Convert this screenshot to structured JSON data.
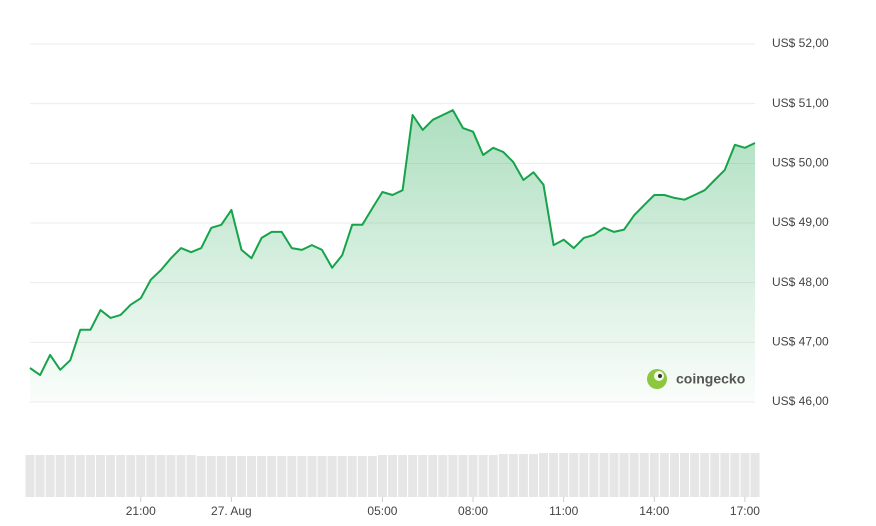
{
  "chart_data": {
    "type": "area",
    "values": [
      46.57,
      46.45,
      46.79,
      46.54,
      46.7,
      47.21,
      47.21,
      47.54,
      47.41,
      47.46,
      47.63,
      47.74,
      48.05,
      48.21,
      48.41,
      48.58,
      48.51,
      48.58,
      48.92,
      48.97,
      49.22,
      48.55,
      48.41,
      48.75,
      48.85,
      48.85,
      48.58,
      48.55,
      48.63,
      48.55,
      48.25,
      48.46,
      48.97,
      48.97,
      49.25,
      49.52,
      49.47,
      49.55,
      50.81,
      50.56,
      50.73,
      50.81,
      50.89,
      50.59,
      50.53,
      50.14,
      50.26,
      50.19,
      50.02,
      49.72,
      49.85,
      49.64,
      48.63,
      48.72,
      48.58,
      48.75,
      48.8,
      48.92,
      48.85,
      48.89,
      49.13,
      49.3,
      49.47,
      49.47,
      49.42,
      49.39,
      49.47,
      49.55,
      49.72,
      49.89,
      50.31,
      50.26,
      50.34
    ],
    "volume": [
      42,
      42,
      42,
      42,
      42,
      42,
      42,
      42,
      42,
      42,
      42,
      42,
      42,
      42,
      42,
      42,
      42,
      41,
      41,
      41,
      41,
      41,
      41,
      41,
      41,
      41,
      41,
      41,
      41,
      41,
      41,
      41,
      41,
      41,
      41,
      42,
      42,
      42,
      42,
      42,
      42,
      42,
      42,
      42,
      42,
      42,
      42,
      43,
      43,
      43,
      43,
      44,
      44,
      44,
      44,
      44,
      44,
      44,
      44,
      44,
      44,
      44,
      44,
      44,
      44,
      44,
      44,
      44,
      44,
      44,
      44,
      44,
      44
    ],
    "volume_ylim": [
      0,
      50
    ],
    "color": "#16a34a",
    "xlim": [
      0,
      72
    ],
    "xticks": [
      {
        "value": 11,
        "label": "21:00"
      },
      {
        "value": 20,
        "label": "27. Aug"
      },
      {
        "value": 35,
        "label": "05:00"
      },
      {
        "value": 44,
        "label": "08:00"
      },
      {
        "value": 53,
        "label": "11:00"
      },
      {
        "value": 62,
        "label": "14:00"
      },
      {
        "value": 71,
        "label": "17:00"
      }
    ],
    "ylim": [
      46,
      52
    ],
    "yticks": [
      {
        "value": 46,
        "label": "US$ 46,00"
      },
      {
        "value": 47,
        "label": "US$ 47,00"
      },
      {
        "value": 48,
        "label": "US$ 48,00"
      },
      {
        "value": 49,
        "label": "US$ 49,00"
      },
      {
        "value": 50,
        "label": "US$ 50,00"
      },
      {
        "value": 51,
        "label": "US$ 51,00"
      },
      {
        "value": 52,
        "label": "US$ 52,00"
      }
    ],
    "grid": true,
    "watermark": "coingecko"
  }
}
